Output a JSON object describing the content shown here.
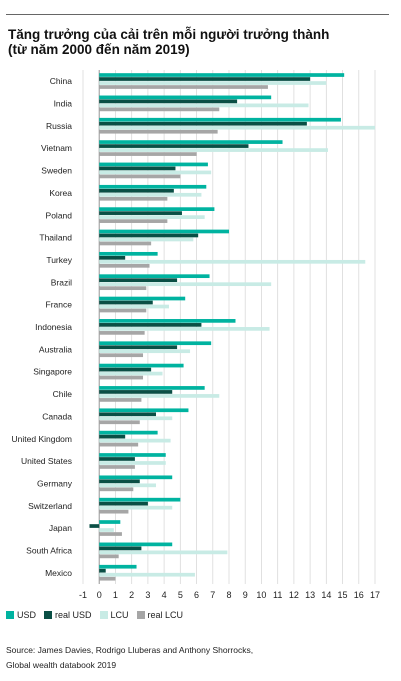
{
  "title_line1": "Tăng trưởng của cải trên mỗi người trưởng thành",
  "title_line2": "(từ năm 2000 đến năm 2019)",
  "source_line1": "Source: James Davies, Rodrigo Lluberas and Anthony Shorrocks,",
  "source_line2": "Global wealth databook 2019",
  "chart_data": {
    "type": "bar",
    "orientation": "horizontal",
    "xlim": [
      -1,
      17
    ],
    "x_ticks": [
      "-1",
      "0",
      "1",
      "2",
      "3",
      "4",
      "5",
      "6",
      "7",
      "8",
      "9",
      "10",
      "11",
      "12",
      "13",
      "14",
      "15",
      "16",
      "17"
    ],
    "grid": true,
    "legend_position": "bottom",
    "categories": [
      "China",
      "India",
      "Russia",
      "Vietnam",
      "Sweden",
      "Korea",
      "Poland",
      "Thailand",
      "Turkey",
      "Brazil",
      "France",
      "Indonesia",
      "Australia",
      "Singapore",
      "Chile",
      "Canada",
      "United Kingdom",
      "United States",
      "Germany",
      "Switzerland",
      "Japan",
      "South Africa",
      "Mexico"
    ],
    "series": [
      {
        "name": "USD",
        "color": "#00b3a0",
        "values": [
          15.1,
          10.6,
          14.9,
          11.3,
          6.7,
          6.6,
          7.1,
          8.0,
          3.6,
          6.8,
          5.3,
          8.4,
          6.9,
          5.2,
          6.5,
          5.5,
          3.6,
          4.1,
          4.5,
          5.0,
          1.3,
          4.5,
          2.3
        ]
      },
      {
        "name": "real USD",
        "color": "#0a4f45",
        "values": [
          13.0,
          8.5,
          12.8,
          9.2,
          4.7,
          4.6,
          5.1,
          6.1,
          1.6,
          4.8,
          3.3,
          6.3,
          4.8,
          3.2,
          4.5,
          3.5,
          1.6,
          2.2,
          2.5,
          3.0,
          -0.6,
          2.6,
          0.4
        ]
      },
      {
        "name": "LCU",
        "color": "#c8ebe5",
        "values": [
          14.0,
          12.9,
          17.0,
          14.1,
          6.9,
          6.3,
          6.5,
          5.8,
          16.4,
          10.6,
          4.3,
          10.5,
          5.6,
          3.9,
          7.4,
          4.5,
          4.4,
          4.1,
          3.5,
          4.5,
          0.9,
          7.9,
          5.9
        ]
      },
      {
        "name": "real LCU",
        "color": "#a6a6a6",
        "values": [
          10.4,
          7.4,
          7.3,
          6.0,
          5.0,
          4.2,
          4.2,
          3.2,
          3.1,
          2.9,
          2.9,
          2.8,
          2.7,
          2.7,
          2.6,
          2.5,
          2.4,
          2.2,
          2.1,
          1.8,
          1.4,
          1.2,
          1.0
        ]
      }
    ]
  }
}
